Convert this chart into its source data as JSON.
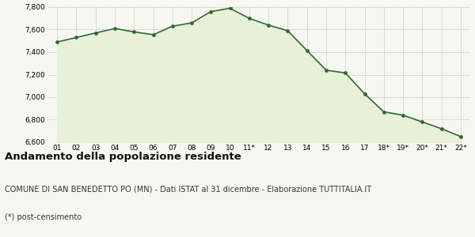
{
  "x_labels": [
    "01",
    "02",
    "03",
    "04",
    "05",
    "06",
    "07",
    "08",
    "09",
    "10",
    "11*",
    "12",
    "13",
    "14",
    "15",
    "16",
    "17",
    "18*",
    "19*",
    "20*",
    "21*",
    "22*"
  ],
  "values": [
    7490,
    7530,
    7570,
    7610,
    7580,
    7555,
    7630,
    7660,
    7760,
    7790,
    7700,
    7640,
    7590,
    7415,
    7240,
    7215,
    7030,
    6870,
    6840,
    6780,
    6720,
    6650
  ],
  "line_color": "#2e6b2e",
  "fill_color": "#e8f0d8",
  "marker_color": "#2e6b2e",
  "bg_color": "#f7f7f2",
  "grid_color": "#cccccc",
  "ylim": [
    6600,
    7800
  ],
  "yticks": [
    6600,
    6800,
    7000,
    7200,
    7400,
    7600,
    7800
  ],
  "title": "Andamento della popolazione residente",
  "subtitle": "COMUNE DI SAN BENEDETTO PO (MN) - Dati ISTAT al 31 dicembre - Elaborazione TUTTITALIA.IT",
  "footnote": "(*) post-censimento",
  "title_fontsize": 9.5,
  "subtitle_fontsize": 7,
  "footnote_fontsize": 7
}
